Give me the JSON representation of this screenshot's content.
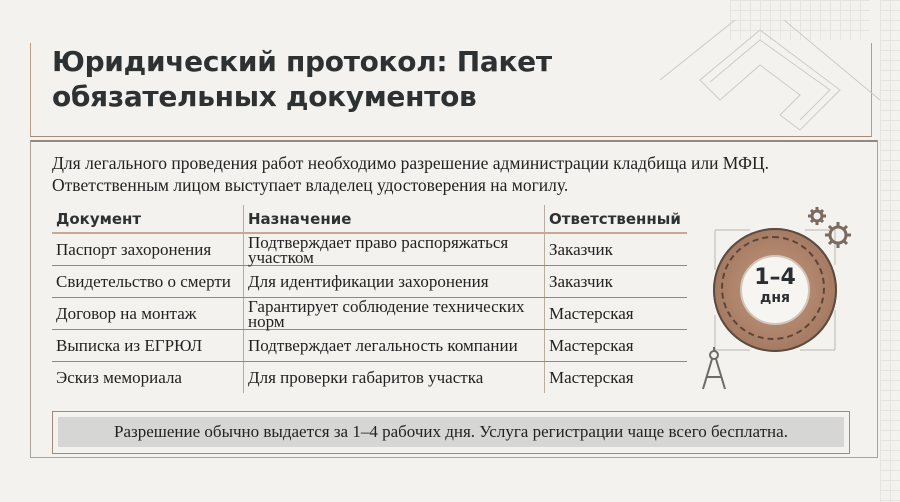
{
  "title": "Юридический протокол: Пакет обязательных документов",
  "intro": "Для легального проведения работ необходимо разрешение администрации кладбища или МФЦ. Ответственным лицом выступает владелец удостоверения на могилу.",
  "table": {
    "headers": [
      "Документ",
      "Назначение",
      "Ответственный"
    ],
    "rows": [
      [
        "Паспорт захоронения",
        "Подтверждает право распоряжаться участком",
        "Заказчик"
      ],
      [
        "Свидетельство о смерти",
        "Для идентификации захоронения",
        "Заказчик"
      ],
      [
        "Договор на монтаж",
        "Гарантирует соблюдение технических норм",
        "Мастерская"
      ],
      [
        "Выписка из ЕГРЮЛ",
        "Подтверждает легальность компании",
        "Мастерская"
      ],
      [
        "Эскиз мемориала",
        "Для проверки габаритов участка",
        "Мастерская"
      ]
    ]
  },
  "badge": {
    "value": "1–4",
    "unit": "дня"
  },
  "note": "Разрешение обычно выдается за 1–4 рабочих дня. Услуга регистрации чаще всего бесплатна.",
  "icons": [
    "gears-icon",
    "compass-icon"
  ],
  "colors": {
    "accent": "#a57a62",
    "text": "#2d3132",
    "note_bg": "#d6d6d4"
  }
}
